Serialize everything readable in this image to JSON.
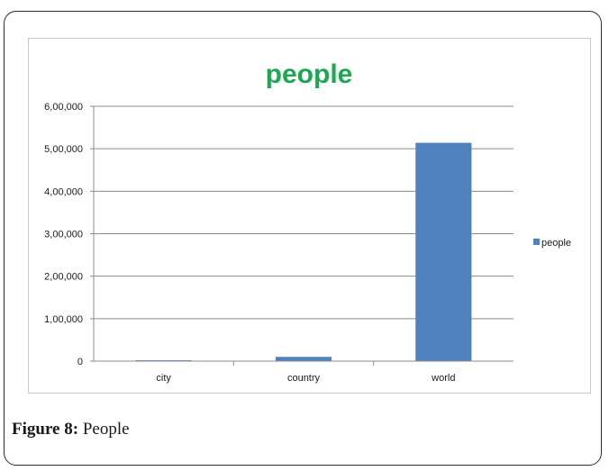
{
  "chart_data": {
    "type": "bar",
    "title": "people",
    "categories": [
      "city",
      "country",
      "world"
    ],
    "series": [
      {
        "name": "people",
        "values": [
          2000,
          10000,
          514000
        ]
      }
    ],
    "ylim": [
      0,
      600000
    ],
    "yticks": [
      0,
      100000,
      200000,
      300000,
      400000,
      500000,
      600000
    ],
    "ytick_labels": [
      "0",
      "1,00,000",
      "2,00,000",
      "3,00,000",
      "4,00,000",
      "5,00,000",
      "6,00,000"
    ],
    "xlabel": "",
    "ylabel": "",
    "grid": true,
    "legend_position": "right",
    "colors": {
      "bar": "#4f81bd",
      "title": "#1fa653",
      "grid": "#8c8c8c"
    }
  },
  "caption": {
    "label": "Figure 8:",
    "text": "People"
  }
}
